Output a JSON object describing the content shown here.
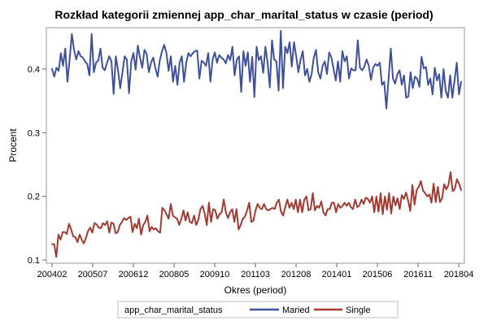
{
  "chart_data": {
    "type": "line",
    "title": "Rozkład kategorii zmiennej app_char_marital_status w czasie (period)",
    "xlabel": "Okres (period)",
    "ylabel": "Procent",
    "x_tick_labels": [
      "200402",
      "200507",
      "200612",
      "200805",
      "200910",
      "201103",
      "201208",
      "201401",
      "201506",
      "201611",
      "201804"
    ],
    "y_ticks": [
      0.1,
      0.2,
      0.3,
      0.4
    ],
    "ylim": [
      0.095,
      0.465
    ],
    "grid": false,
    "legend": {
      "title": "app_char_marital_status",
      "placement": "bottom"
    },
    "x_period_start": "200402",
    "x_period_end": "201805",
    "series": [
      {
        "name": "Maried",
        "color": "#3f519a",
        "values": [
          0.4,
          0.388,
          0.402,
          0.397,
          0.425,
          0.405,
          0.432,
          0.38,
          0.415,
          0.455,
          0.43,
          0.415,
          0.428,
          0.42,
          0.418,
          0.412,
          0.408,
          0.39,
          0.455,
          0.395,
          0.41,
          0.413,
          0.432,
          0.402,
          0.398,
          0.41,
          0.42,
          0.412,
          0.361,
          0.42,
          0.398,
          0.37,
          0.395,
          0.42,
          0.415,
          0.362,
          0.412,
          0.425,
          0.399,
          0.437,
          0.418,
          0.402,
          0.43,
          0.424,
          0.395,
          0.41,
          0.418,
          0.401,
          0.388,
          0.414,
          0.428,
          0.438,
          0.425,
          0.397,
          0.42,
          0.38,
          0.405,
          0.375,
          0.41,
          0.42,
          0.38,
          0.41,
          0.425,
          0.42,
          0.425,
          0.428,
          0.429,
          0.385,
          0.413,
          0.41,
          0.405,
          0.425,
          0.38,
          0.415,
          0.426,
          0.41,
          0.422,
          0.418,
          0.415,
          0.409,
          0.422,
          0.414,
          0.435,
          0.39,
          0.415,
          0.42,
          0.364,
          0.428,
          0.405,
          0.426,
          0.38,
          0.419,
          0.356,
          0.435,
          0.414,
          0.42,
          0.394,
          0.435,
          0.41,
          0.371,
          0.445,
          0.415,
          0.412,
          0.366,
          0.46,
          0.37,
          0.435,
          0.425,
          0.442,
          0.404,
          0.442,
          0.42,
          0.395,
          0.415,
          0.428,
          0.39,
          0.4,
          0.38,
          0.392,
          0.418,
          0.43,
          0.395,
          0.385,
          0.405,
          0.412,
          0.392,
          0.426,
          0.418,
          0.4,
          0.382,
          0.412,
          0.38,
          0.428,
          0.412,
          0.42,
          0.385,
          0.401,
          0.398,
          0.398,
          0.445,
          0.402,
          0.398,
          0.404,
          0.415,
          0.405,
          0.383,
          0.402,
          0.408,
          0.405,
          0.41,
          0.375,
          0.38,
          0.338,
          0.385,
          0.432,
          0.385,
          0.377,
          0.392,
          0.398,
          0.375,
          0.39,
          0.355,
          0.357,
          0.395,
          0.37,
          0.388,
          0.385,
          0.372,
          0.419,
          0.401,
          0.403,
          0.375,
          0.385,
          0.36,
          0.402,
          0.382,
          0.392,
          0.355,
          0.4,
          0.365,
          0.355,
          0.39,
          0.355,
          0.382,
          0.41,
          0.36,
          0.38
        ]
      },
      {
        "name": "Single",
        "color": "#a23a32",
        "values": [
          0.125,
          0.125,
          0.105,
          0.14,
          0.132,
          0.144,
          0.144,
          0.141,
          0.157,
          0.148,
          0.137,
          0.136,
          0.128,
          0.14,
          0.132,
          0.126,
          0.135,
          0.146,
          0.151,
          0.143,
          0.158,
          0.156,
          0.151,
          0.15,
          0.158,
          0.155,
          0.161,
          0.143,
          0.159,
          0.157,
          0.142,
          0.144,
          0.155,
          0.16,
          0.166,
          0.163,
          0.166,
          0.168,
          0.144,
          0.157,
          0.15,
          0.165,
          0.14,
          0.155,
          0.16,
          0.17,
          0.145,
          0.152,
          0.148,
          0.15,
          0.145,
          0.143,
          0.182,
          0.178,
          0.172,
          0.165,
          0.188,
          0.17,
          0.167,
          0.165,
          0.155,
          0.165,
          0.178,
          0.162,
          0.175,
          0.16,
          0.158,
          0.17,
          0.155,
          0.163,
          0.18,
          0.185,
          0.173,
          0.155,
          0.19,
          0.16,
          0.18,
          0.178,
          0.165,
          0.172,
          0.175,
          0.195,
          0.175,
          0.166,
          0.175,
          0.18,
          0.16,
          0.18,
          0.148,
          0.155,
          0.165,
          0.168,
          0.178,
          0.19,
          0.16,
          0.162,
          0.178,
          0.188,
          0.182,
          0.18,
          0.188,
          0.18,
          0.178,
          0.18,
          0.182,
          0.18,
          0.19,
          0.195,
          0.176,
          0.17,
          0.183,
          0.195,
          0.182,
          0.19,
          0.18,
          0.195,
          0.175,
          0.195,
          0.175,
          0.195,
          0.2,
          0.178,
          0.18,
          0.205,
          0.178,
          0.185,
          0.182,
          0.192,
          0.175,
          0.17,
          0.18,
          0.18,
          0.19,
          0.19,
          0.175,
          0.188,
          0.182,
          0.185,
          0.19,
          0.185,
          0.19,
          0.183,
          0.18,
          0.195,
          0.183,
          0.186,
          0.195,
          0.188,
          0.198,
          0.196,
          0.19,
          0.2,
          0.175,
          0.2,
          0.176,
          0.205,
          0.172,
          0.2,
          0.179,
          0.205,
          0.173,
          0.2,
          0.186,
          0.197,
          0.18,
          0.202,
          0.196,
          0.206,
          0.193,
          0.177,
          0.218,
          0.187,
          0.21,
          0.215,
          0.224,
          0.209,
          0.205,
          0.2,
          0.203,
          0.19,
          0.22,
          0.191,
          0.215,
          0.191,
          0.197,
          0.219,
          0.211,
          0.218,
          0.238,
          0.208,
          0.212,
          0.227,
          0.22,
          0.21
        ]
      }
    ]
  }
}
